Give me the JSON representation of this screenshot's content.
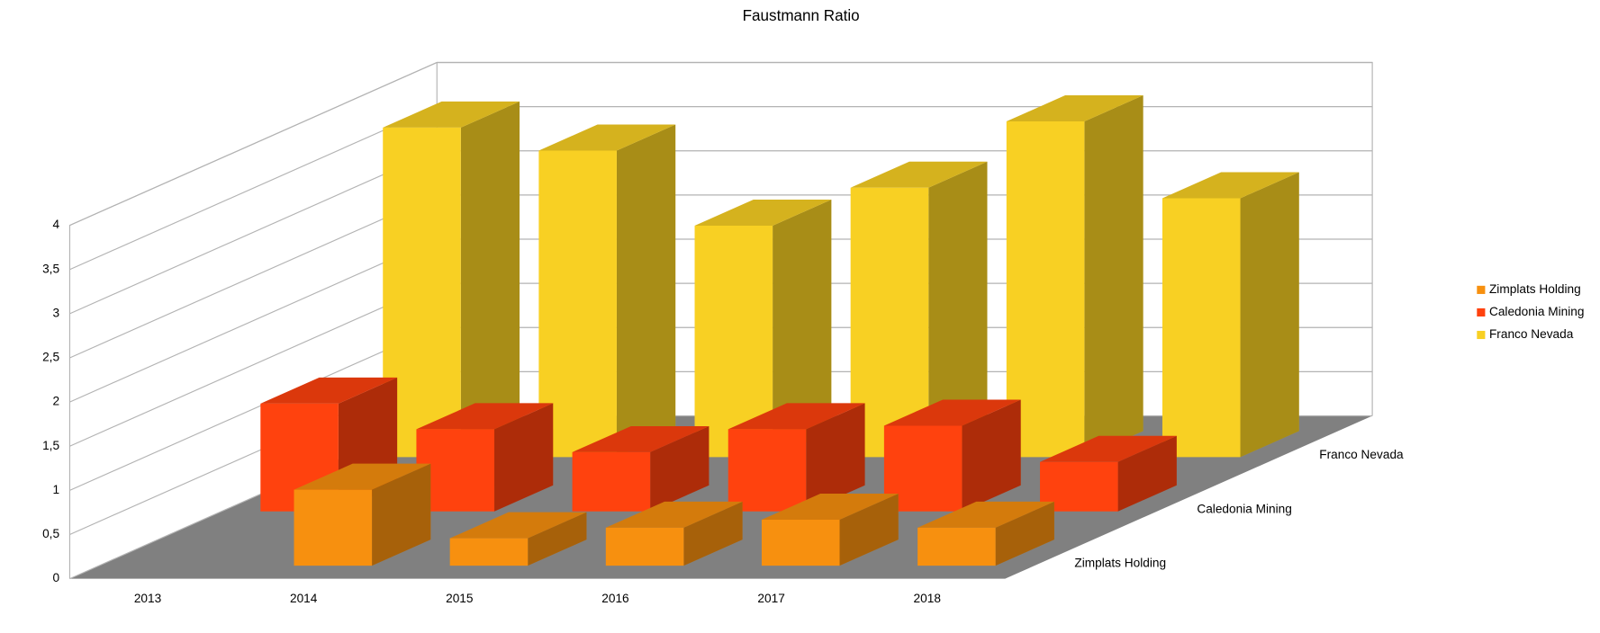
{
  "chart_data": {
    "type": "bar3d",
    "title": "Faustmann Ratio",
    "categories": [
      "2013",
      "2014",
      "2015",
      "2016",
      "2017",
      "2018"
    ],
    "series": [
      {
        "name": "Zimplats Holding",
        "color": "#f7900f",
        "values": [
          null,
          0.86,
          0.31,
          0.43,
          0.52,
          0.43
        ]
      },
      {
        "name": "Caledonia Mining",
        "color": "#ff420e",
        "values": [
          1.22,
          0.93,
          0.67,
          0.93,
          0.97,
          0.56
        ]
      },
      {
        "name": "Franco Nevada",
        "color": "#f8d023",
        "values": [
          3.73,
          3.47,
          2.62,
          3.05,
          3.8,
          2.93
        ]
      }
    ],
    "ylim": [
      0,
      4
    ],
    "yticks": [
      0,
      {
        "value": 0.5,
        "label": "0,5"
      },
      1,
      {
        "value": 1.5,
        "label": "1,5"
      },
      2,
      {
        "value": 2.5,
        "label": "2,5"
      },
      3,
      {
        "value": 3.5,
        "label": "3,5"
      },
      4
    ],
    "grid": true,
    "legend": "right"
  }
}
